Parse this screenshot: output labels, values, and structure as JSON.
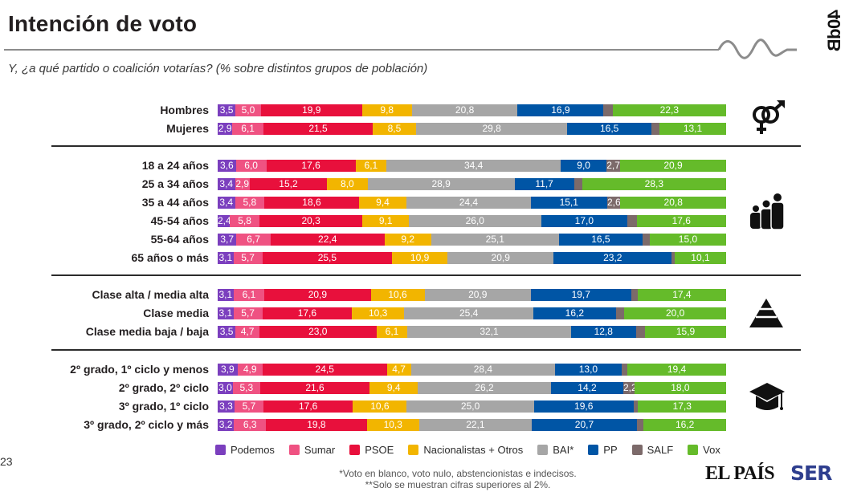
{
  "header": {
    "title": "Intención de voto",
    "subtitle": "Y, ¿a qué partido o coalición votarías? (% sobre distintos grupos de población)",
    "brand": "40dB"
  },
  "footer": {
    "page_number": "23",
    "footnote_1": "*Voto en blanco,  voto nulo, abstencionistas e indecisos.",
    "footnote_2": "**Solo se muestran cifras superiores al 2%.",
    "logo_1": "EL PAÍS",
    "logo_2": "SER"
  },
  "icons": {
    "gender": "gender-symbols-icon",
    "age": "family-age-icon",
    "class": "pyramid-class-icon",
    "education": "graduation-cap-icon"
  },
  "chart_data": {
    "type": "bar",
    "orientation": "horizontal-stacked-100",
    "title": "Intención de voto",
    "subtitle": "Y, ¿a qué partido o coalición votarías? (% sobre distintos grupos de población)",
    "xlabel": "",
    "ylabel": "",
    "xlim": [
      0,
      100
    ],
    "grid": false,
    "legend_position": "bottom",
    "label_threshold": 2,
    "series": [
      {
        "name": "Podemos",
        "color": "#7b3fbe"
      },
      {
        "name": "Sumar",
        "color": "#ef5282"
      },
      {
        "name": "PSOE",
        "color": "#e8103c"
      },
      {
        "name": "Nacionalistas + Otros",
        "color": "#f2b500"
      },
      {
        "name": "BAI*",
        "color": "#a6a6a6"
      },
      {
        "name": "PP",
        "color": "#0055a5"
      },
      {
        "name": "SALF",
        "color": "#7c6a6a"
      },
      {
        "name": "Vox",
        "color": "#65bb2a"
      }
    ],
    "groups": [
      {
        "name": "Sexo",
        "rows": [
          {
            "label": "Hombres",
            "values": [
              3.5,
              5.0,
              19.9,
              9.8,
              20.8,
              16.9,
              1.8,
              22.3
            ]
          },
          {
            "label": "Mujeres",
            "values": [
              2.9,
              6.1,
              21.5,
              8.5,
              29.8,
              16.5,
              1.6,
              13.1
            ]
          }
        ]
      },
      {
        "name": "Edad",
        "rows": [
          {
            "label": "18 a 24 años",
            "values": [
              3.6,
              6.0,
              17.6,
              6.1,
              34.4,
              9.0,
              2.7,
              20.9
            ]
          },
          {
            "label": "25 a 34 años",
            "values": [
              3.4,
              2.9,
              15.2,
              8.0,
              28.9,
              11.7,
              1.6,
              28.3
            ]
          },
          {
            "label": "35 a 44 años",
            "values": [
              3.4,
              5.8,
              18.6,
              9.4,
              24.4,
              15.1,
              2.6,
              20.8
            ]
          },
          {
            "label": "45-54 años",
            "values": [
              2.4,
              5.8,
              20.3,
              9.1,
              26.0,
              17.0,
              1.8,
              17.6
            ]
          },
          {
            "label": "55-64 años",
            "values": [
              3.7,
              6.7,
              22.4,
              9.2,
              25.1,
              16.5,
              1.4,
              15.0
            ]
          },
          {
            "label": "65 años o más",
            "values": [
              3.1,
              5.7,
              25.5,
              10.9,
              20.9,
              23.2,
              0.6,
              10.1
            ]
          }
        ]
      },
      {
        "name": "Clase social",
        "rows": [
          {
            "label": "Clase alta / media alta",
            "values": [
              3.1,
              6.1,
              20.9,
              10.6,
              20.9,
              19.7,
              1.3,
              17.4
            ]
          },
          {
            "label": "Clase media",
            "values": [
              3.1,
              5.7,
              17.6,
              10.3,
              25.4,
              16.2,
              1.7,
              20.0
            ]
          },
          {
            "label": "Clase media baja / baja",
            "values": [
              3.5,
              4.7,
              23.0,
              6.1,
              32.1,
              12.8,
              1.8,
              15.9
            ]
          }
        ]
      },
      {
        "name": "Estudios",
        "rows": [
          {
            "label": "2º grado, 1º ciclo y menos",
            "values": [
              3.9,
              4.9,
              24.5,
              4.7,
              28.4,
              13.0,
              1.2,
              19.4
            ]
          },
          {
            "label": "2º grado, 2º ciclo",
            "values": [
              3.0,
              5.3,
              21.6,
              9.4,
              26.2,
              14.2,
              2.2,
              18.0
            ]
          },
          {
            "label": "3º grado, 1º ciclo",
            "values": [
              3.3,
              5.7,
              17.6,
              10.6,
              25.0,
              19.6,
              0.9,
              17.3
            ]
          },
          {
            "label": "3º grado, 2º ciclo y más",
            "values": [
              3.2,
              6.3,
              19.8,
              10.3,
              22.1,
              20.7,
              1.3,
              16.2
            ]
          }
        ]
      }
    ]
  }
}
